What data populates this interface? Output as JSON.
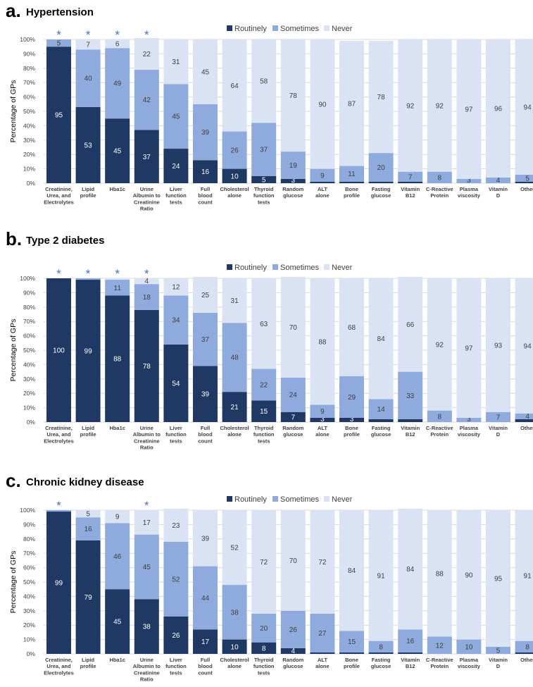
{
  "legend": {
    "items": [
      "Routinely",
      "Sometimes",
      "Never"
    ]
  },
  "y_axis_label": "Percentage of GPs",
  "y_ticks": [
    "0%",
    "10%",
    "20%",
    "30%",
    "40%",
    "50%",
    "60%",
    "70%",
    "80%",
    "90%",
    "100%"
  ],
  "categories": [
    [
      "Creatinine,",
      "Urea, and",
      "Electrolytes"
    ],
    [
      "Lipid",
      "profile"
    ],
    [
      "Hba1c"
    ],
    [
      "Urine",
      "Albumin to",
      "Creatinine",
      "Ratio"
    ],
    [
      "Liver",
      "function",
      "tests"
    ],
    [
      "Full",
      "blood",
      "count"
    ],
    [
      "Cholesterol",
      "alone"
    ],
    [
      "Thyroid",
      "function",
      "tests"
    ],
    [
      "Random",
      "glucose"
    ],
    [
      "ALT",
      "alone"
    ],
    [
      "Bone",
      "profile"
    ],
    [
      "Fasting",
      "glucose"
    ],
    [
      "Vitamin",
      "B12"
    ],
    [
      "C-Reactive",
      "Protein"
    ],
    [
      "Plasma",
      "viscosity"
    ],
    [
      "Vitamin",
      "D"
    ],
    [
      "Other"
    ]
  ],
  "colors": {
    "routinely": "#1f3864",
    "sometimes": "#8faadc",
    "never": "#dae3f3",
    "asterisk": "#4472c4"
  },
  "chart_data": [
    {
      "type": "bar",
      "stacked": true,
      "panel_letter": "a.",
      "title": "Hypertension",
      "ylabel": "Percentage of GPs",
      "ylim": [
        0,
        100
      ],
      "significant": [
        0,
        1,
        2,
        3
      ],
      "series": [
        {
          "name": "Routinely",
          "values": [
            95,
            53,
            45,
            37,
            24,
            16,
            10,
            5,
            3,
            1,
            1,
            1,
            1,
            0,
            0,
            0,
            1
          ],
          "labels": [
            "95",
            "53",
            "45",
            "37",
            "24",
            "16",
            "10",
            "5",
            "3",
            "",
            "",
            "",
            "",
            "",
            "",
            "",
            ""
          ]
        },
        {
          "name": "Sometimes",
          "values": [
            5,
            40,
            49,
            42,
            45,
            39,
            26,
            37,
            19,
            9,
            11,
            20,
            7,
            8,
            3,
            4,
            5
          ],
          "labels": [
            "5",
            "40",
            "49",
            "42",
            "45",
            "39",
            "26",
            "37",
            "19",
            "9",
            "11",
            "20",
            "7",
            "8",
            "3",
            "4",
            "5"
          ]
        },
        {
          "name": "Never",
          "values": [
            0,
            7,
            6,
            22,
            31,
            45,
            64,
            58,
            78,
            90,
            87,
            78,
            92,
            92,
            97,
            96,
            94
          ],
          "labels": [
            "",
            "7",
            "6",
            "22",
            "31",
            "45",
            "64",
            "58",
            "78",
            "90",
            "87",
            "78",
            "92",
            "92",
            "97",
            "96",
            "94"
          ]
        }
      ]
    },
    {
      "type": "bar",
      "stacked": true,
      "panel_letter": "b.",
      "title": "Type 2 diabetes",
      "ylabel": "Percentage of GPs",
      "ylim": [
        0,
        100
      ],
      "significant": [
        0,
        1,
        2,
        3
      ],
      "series": [
        {
          "name": "Routinely",
          "values": [
            100,
            99,
            88,
            78,
            54,
            39,
            21,
            15,
            7,
            3,
            3,
            2,
            2,
            0,
            0,
            0,
            2
          ],
          "labels": [
            "100",
            "99",
            "88",
            "78",
            "54",
            "39",
            "21",
            "15",
            "7",
            "3",
            "3",
            "",
            "",
            "",
            "",
            "",
            ""
          ]
        },
        {
          "name": "Sometimes",
          "values": [
            0,
            1,
            11,
            18,
            34,
            37,
            48,
            22,
            24,
            9,
            29,
            14,
            33,
            8,
            3,
            7,
            4
          ],
          "labels": [
            "",
            "",
            "11",
            "18",
            "34",
            "37",
            "48",
            "22",
            "24",
            "9",
            "29",
            "14",
            "33",
            "8",
            "3",
            "7",
            "4"
          ]
        },
        {
          "name": "Never",
          "values": [
            0,
            0,
            1,
            4,
            12,
            25,
            31,
            63,
            70,
            88,
            68,
            84,
            66,
            92,
            97,
            93,
            94
          ],
          "labels": [
            "",
            "",
            "",
            "4",
            "12",
            "25",
            "31",
            "63",
            "70",
            "88",
            "68",
            "84",
            "66",
            "92",
            "97",
            "93",
            "94"
          ]
        }
      ]
    },
    {
      "type": "bar",
      "stacked": true,
      "panel_letter": "c.",
      "title": "Chronic kidney disease",
      "ylabel": "Percentage of GPs",
      "ylim": [
        0,
        100
      ],
      "significant": [
        0,
        3
      ],
      "series": [
        {
          "name": "Routinely",
          "values": [
            99,
            79,
            45,
            38,
            26,
            17,
            10,
            8,
            4,
            1,
            1,
            1,
            1,
            0,
            0,
            0,
            1
          ],
          "labels": [
            "99",
            "79",
            "45",
            "38",
            "26",
            "17",
            "10",
            "8",
            "4",
            "",
            "",
            "",
            "",
            "",
            "",
            "",
            ""
          ]
        },
        {
          "name": "Sometimes",
          "values": [
            1,
            16,
            46,
            45,
            52,
            44,
            38,
            20,
            26,
            27,
            15,
            8,
            16,
            12,
            10,
            5,
            8
          ],
          "labels": [
            "",
            "16",
            "46",
            "45",
            "52",
            "44",
            "38",
            "20",
            "26",
            "27",
            "15",
            "8",
            "16",
            "12",
            "10",
            "5",
            "8"
          ]
        },
        {
          "name": "Never",
          "values": [
            0,
            5,
            9,
            17,
            23,
            39,
            52,
            72,
            70,
            72,
            84,
            91,
            84,
            88,
            90,
            95,
            91
          ],
          "labels": [
            "",
            "5",
            "9",
            "17",
            "23",
            "39",
            "52",
            "72",
            "70",
            "72",
            "84",
            "91",
            "84",
            "88",
            "90",
            "95",
            "91"
          ]
        }
      ]
    }
  ]
}
